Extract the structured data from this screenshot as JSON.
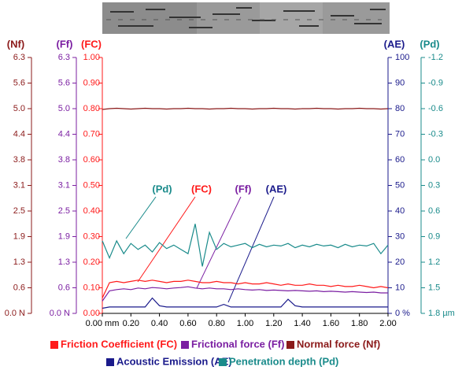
{
  "chart_data": {
    "type": "line",
    "x": [
      0,
      0.05,
      0.1,
      0.15,
      0.2,
      0.25,
      0.3,
      0.35,
      0.4,
      0.45,
      0.5,
      0.55,
      0.6,
      0.65,
      0.7,
      0.75,
      0.8,
      0.85,
      0.9,
      0.95,
      1.0,
      1.05,
      1.1,
      1.15,
      1.2,
      1.25,
      1.3,
      1.35,
      1.4,
      1.45,
      1.5,
      1.55,
      1.6,
      1.65,
      1.7,
      1.75,
      1.8,
      1.85,
      1.9,
      1.95,
      2.0
    ],
    "xlim": [
      0,
      2
    ],
    "xticks": [
      {
        "value": 0,
        "label": "0.00 mm"
      },
      {
        "value": 0.2,
        "label": "0.20"
      },
      {
        "value": 0.4,
        "label": "0.40"
      },
      {
        "value": 0.6,
        "label": "0.60"
      },
      {
        "value": 0.8,
        "label": "0.80"
      },
      {
        "value": 1,
        "label": "1.00"
      },
      {
        "value": 1.2,
        "label": "1.20"
      },
      {
        "value": 1.4,
        "label": "1.40"
      },
      {
        "value": 1.6,
        "label": "1.60"
      },
      {
        "value": 1.8,
        "label": "1.80"
      },
      {
        "value": 2,
        "label": "2.00"
      }
    ],
    "axes": [
      {
        "label": "(Nf)",
        "color": "#8b1a1a",
        "ylim": [
          0,
          6.25
        ],
        "yticks": [
          {
            "value": 0,
            "label": "0.0 N"
          },
          {
            "value": 0.625,
            "label": "0.6"
          },
          {
            "value": 1.25,
            "label": "1.3"
          },
          {
            "value": 1.875,
            "label": "1.9"
          },
          {
            "value": 2.5,
            "label": "2.5"
          },
          {
            "value": 3.125,
            "label": "3.1"
          },
          {
            "value": 3.75,
            "label": "3.8"
          },
          {
            "value": 4.375,
            "label": "4.4"
          },
          {
            "value": 5,
            "label": "5.0"
          },
          {
            "value": 5.625,
            "label": "5.6"
          },
          {
            "value": 6.25,
            "label": "6.3"
          }
        ]
      },
      {
        "label": "(Ff)",
        "color": "#7b1fa2",
        "ylim": [
          0,
          6.25
        ],
        "yticks": [
          {
            "value": 0,
            "label": "0.0 N"
          },
          {
            "value": 0.625,
            "label": "0.6"
          },
          {
            "value": 1.25,
            "label": "1.3"
          },
          {
            "value": 1.875,
            "label": "1.9"
          },
          {
            "value": 2.5,
            "label": "2.5"
          },
          {
            "value": 3.125,
            "label": "3.1"
          },
          {
            "value": 3.75,
            "label": "3.8"
          },
          {
            "value": 4.375,
            "label": "4.4"
          },
          {
            "value": 5,
            "label": "5.0"
          },
          {
            "value": 5.625,
            "label": "5.6"
          },
          {
            "value": 6.25,
            "label": "6.3"
          }
        ]
      },
      {
        "label": "(FC)",
        "color": "#ff1a1a",
        "ylim": [
          0,
          1
        ],
        "yticks": [
          {
            "value": 0,
            "label": "0.00"
          },
          {
            "value": 0.1,
            "label": "0.10"
          },
          {
            "value": 0.2,
            "label": "0.20"
          },
          {
            "value": 0.3,
            "label": "0.30"
          },
          {
            "value": 0.4,
            "label": "0.40"
          },
          {
            "value": 0.5,
            "label": "0.50"
          },
          {
            "value": 0.6,
            "label": "0.60"
          },
          {
            "value": 0.7,
            "label": "0.70"
          },
          {
            "value": 0.8,
            "label": "0.80"
          },
          {
            "value": 0.9,
            "label": "0.90"
          },
          {
            "value": 1,
            "label": "1.00"
          }
        ]
      },
      {
        "label": "(AE)",
        "color": "#1a1a8b",
        "ylim": [
          0,
          100
        ],
        "yticks": [
          {
            "value": 0,
            "label": "0 %"
          },
          10,
          20,
          30,
          40,
          50,
          60,
          70,
          80,
          90,
          100
        ]
      },
      {
        "label": "(Pd)",
        "color": "#1a8b8b",
        "ylim": [
          1.8,
          -1.2
        ],
        "yticks": [
          {
            "value": 1.8,
            "label": "1.8 µm"
          },
          1.5,
          1.2,
          0.9,
          0.6,
          0.3,
          {
            "value": 0,
            "label": "0.0"
          },
          -0.3,
          -0.6,
          -0.9,
          -1.2
        ]
      }
    ],
    "annotations": [
      "(Pd)",
      "(FC)",
      "(Ff)",
      "(AE)"
    ],
    "series": [
      {
        "name": "Friction Coefficient (FC)",
        "color": "#ff1a1a",
        "axis": "(FC)",
        "values": [
          0.06,
          0.12,
          0.125,
          0.12,
          0.125,
          0.13,
          0.125,
          0.13,
          0.125,
          0.12,
          0.125,
          0.125,
          0.13,
          0.125,
          0.12,
          0.12,
          0.125,
          0.12,
          0.12,
          0.115,
          0.12,
          0.115,
          0.115,
          0.12,
          0.115,
          0.11,
          0.115,
          0.11,
          0.11,
          0.115,
          0.11,
          0.11,
          0.105,
          0.11,
          0.105,
          0.105,
          0.11,
          0.105,
          0.1,
          0.105,
          0.1
        ]
      },
      {
        "name": "Frictional force (Ff)",
        "color": "#7b1fa2",
        "axis": "(Ff)",
        "values": [
          0.3,
          0.55,
          0.58,
          0.6,
          0.58,
          0.62,
          0.6,
          0.63,
          0.62,
          0.6,
          0.62,
          0.63,
          0.65,
          0.62,
          0.6,
          0.62,
          0.6,
          0.6,
          0.58,
          0.6,
          0.58,
          0.57,
          0.58,
          0.56,
          0.57,
          0.56,
          0.55,
          0.56,
          0.55,
          0.54,
          0.55,
          0.53,
          0.54,
          0.53,
          0.52,
          0.53,
          0.52,
          0.51,
          0.52,
          0.5,
          0.5
        ]
      },
      {
        "name": "Normal force (Nf)",
        "color": "#8b1a1a",
        "axis": "(Nf)",
        "values": [
          4.98,
          5.0,
          5.01,
          5.0,
          4.99,
          5.0,
          5.01,
          5.0,
          5.0,
          4.99,
          5.0,
          5.0,
          5.01,
          5.0,
          5.0,
          4.99,
          5.0,
          5.0,
          5.01,
          5.0,
          5.0,
          4.99,
          5.0,
          5.0,
          5.01,
          5.0,
          5.0,
          4.99,
          5.0,
          5.0,
          5.01,
          5.0,
          5.0,
          4.99,
          5.0,
          5.0,
          5.01,
          5.0,
          5.0,
          4.99,
          5.0
        ]
      },
      {
        "name": "Acoustic Emission (AE)",
        "color": "#1a1a8b",
        "axis": "(AE)",
        "values": [
          2,
          2.5,
          2.5,
          2.5,
          2.5,
          2.5,
          2.5,
          6,
          3,
          2.5,
          2.5,
          2.5,
          2.5,
          2.5,
          2.5,
          2.5,
          2.5,
          3.5,
          2.5,
          2.5,
          2.5,
          2.5,
          2.5,
          2.5,
          2.5,
          2.5,
          5.5,
          3,
          2.5,
          2.5,
          2.5,
          2.5,
          2.5,
          2.5,
          2.5,
          2.5,
          2.5,
          2.5,
          2.5,
          2.5,
          2.5
        ]
      },
      {
        "name": "Penetration depth (Pd)",
        "color": "#1a8b8b",
        "axis": "(Pd)",
        "values": [
          0.95,
          1.15,
          0.95,
          1.1,
          0.98,
          1.05,
          1.0,
          1.08,
          0.97,
          1.04,
          1.0,
          1.05,
          1.1,
          0.75,
          1.25,
          0.85,
          1.05,
          0.98,
          1.02,
          1.0,
          0.98,
          1.03,
          0.99,
          1.02,
          1.0,
          1.01,
          0.98,
          1.03,
          1.0,
          1.02,
          0.99,
          1.01,
          1.0,
          1.03,
          0.99,
          1.02,
          1.0,
          1.01,
          0.98,
          1.1,
          1.0
        ]
      }
    ]
  }
}
